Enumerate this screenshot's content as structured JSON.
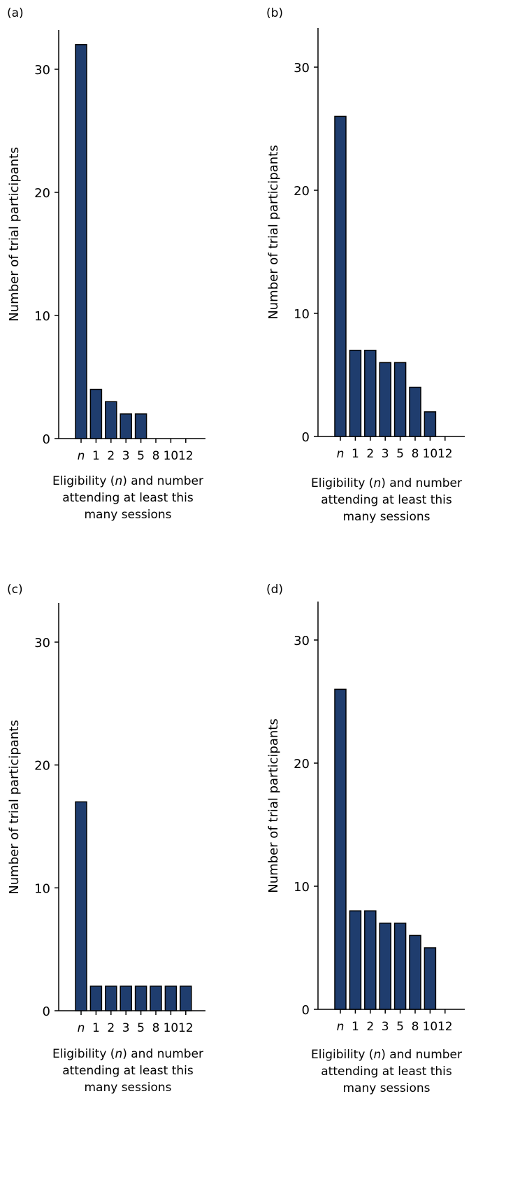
{
  "chart_data": [
    {
      "panel": "(a)",
      "type": "bar",
      "categories": [
        "n",
        "1",
        "2",
        "3",
        "5",
        "8",
        "10",
        "12"
      ],
      "values": [
        32,
        4,
        3,
        2,
        2,
        0,
        0,
        0
      ],
      "xlabel": [
        "Eligibility (n) and number",
        "attending at least this",
        "many sessions"
      ],
      "ylabel": "Number of trial participants",
      "yticks": [
        0,
        10,
        20,
        30
      ],
      "ylim": [
        0,
        33
      ],
      "grid": false
    },
    {
      "panel": "(b)",
      "type": "bar",
      "categories": [
        "n",
        "1",
        "2",
        "3",
        "5",
        "8",
        "10",
        "12"
      ],
      "values": [
        26,
        7,
        7,
        6,
        6,
        4,
        2,
        0
      ],
      "xlabel": [
        "Eligibility (n) and number",
        "attending at least this",
        "many sessions"
      ],
      "ylabel": "Number of trial participants",
      "yticks": [
        0,
        10,
        20,
        30
      ],
      "ylim": [
        0,
        33
      ],
      "grid": false
    },
    {
      "panel": "(c)",
      "type": "bar",
      "categories": [
        "n",
        "1",
        "2",
        "3",
        "5",
        "8",
        "10",
        "12"
      ],
      "values": [
        17,
        2,
        2,
        2,
        2,
        2,
        2,
        2
      ],
      "xlabel": [
        "Eligibility (n) and number",
        "attending at least this",
        "many sessions"
      ],
      "ylabel": "Number of trial participants",
      "yticks": [
        0,
        10,
        20,
        30
      ],
      "ylim": [
        0,
        33
      ],
      "grid": false
    },
    {
      "panel": "(d)",
      "type": "bar",
      "categories": [
        "n",
        "1",
        "2",
        "3",
        "5",
        "8",
        "10",
        "12"
      ],
      "values": [
        26,
        8,
        8,
        7,
        7,
        6,
        5,
        0
      ],
      "xlabel": [
        "Eligibility (n) and number",
        "attending at least this",
        "many sessions"
      ],
      "ylabel": "Number of trial participants",
      "yticks": [
        0,
        10,
        20,
        30
      ],
      "ylim": [
        0,
        33
      ],
      "grid": false
    }
  ],
  "colors": {
    "bar_fill": "#1f3d6e",
    "bar_stroke": "#000000",
    "axis": "#000000"
  }
}
